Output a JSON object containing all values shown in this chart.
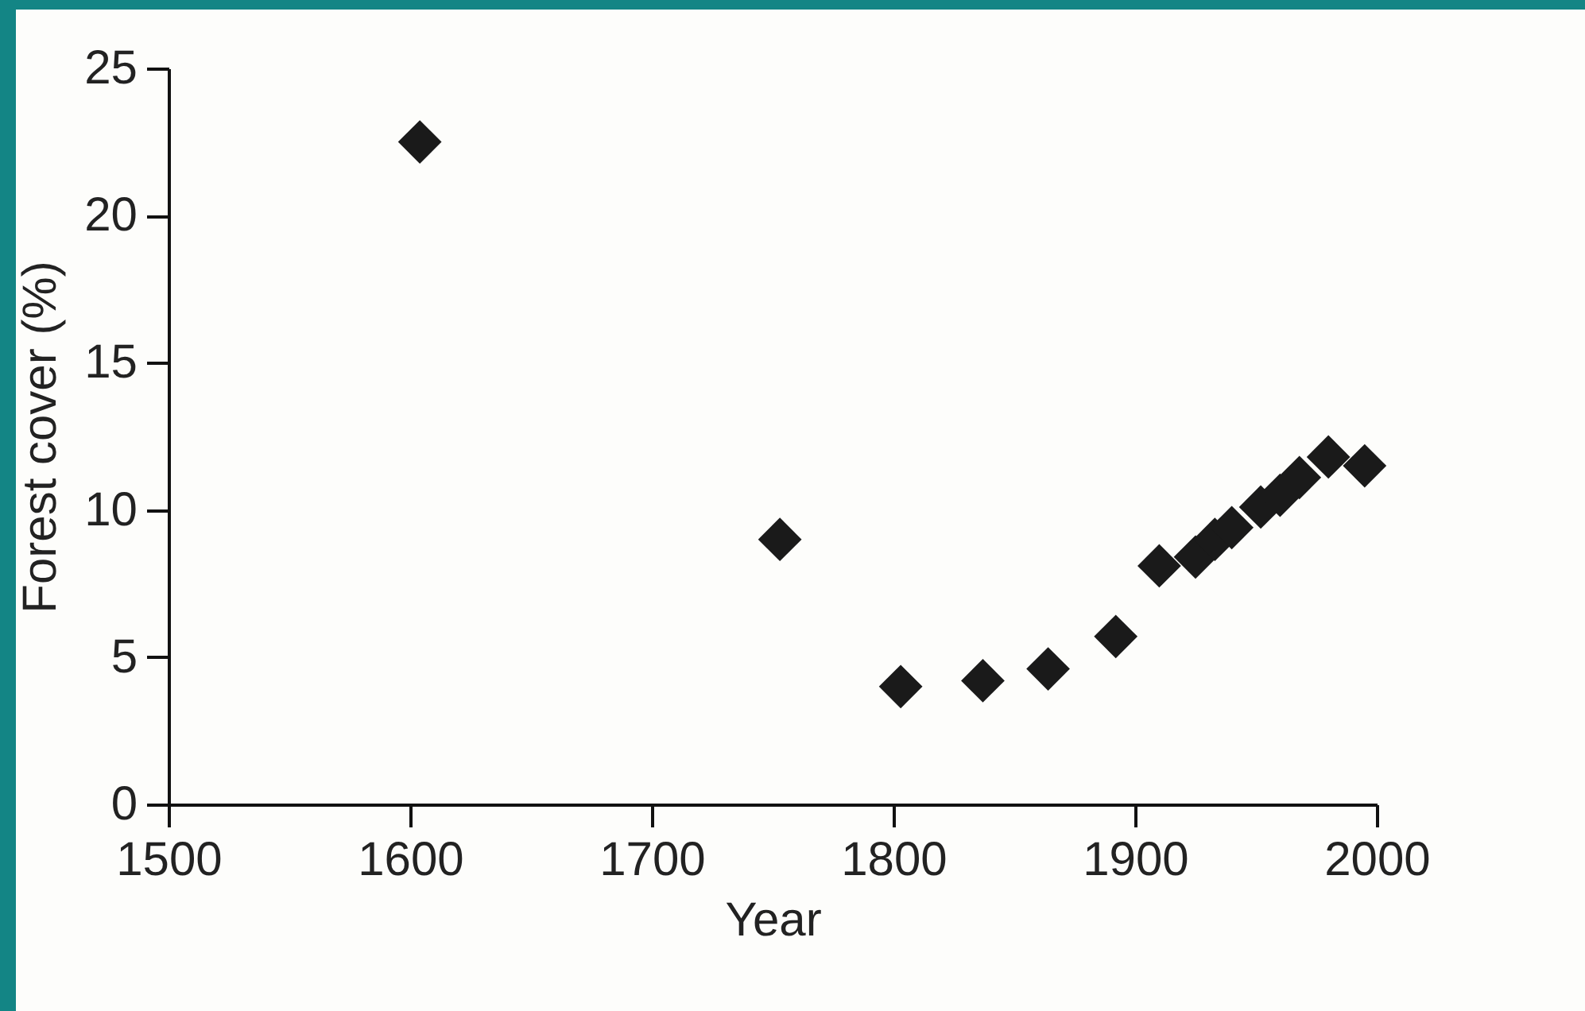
{
  "chart_data": {
    "type": "scatter",
    "xlabel": "Year",
    "ylabel": "Forest cover (%)",
    "x": [
      1604,
      1753,
      1803,
      1837,
      1864,
      1892,
      1910,
      1925,
      1933,
      1940,
      1952,
      1960,
      1968,
      1980,
      1995
    ],
    "series": [
      {
        "color": "#1a1a1a",
        "values": [
          22.5,
          9.0,
          4.0,
          4.2,
          4.6,
          5.7,
          8.1,
          8.4,
          9.0,
          9.4,
          10.1,
          10.5,
          11.1,
          11.8,
          11.5
        ]
      }
    ],
    "xlim": [
      1500,
      2000
    ],
    "xticks": [
      1500,
      1600,
      1700,
      1800,
      1900,
      2000
    ],
    "ylim": [
      0,
      25
    ],
    "yticks": [
      0,
      5,
      10,
      15,
      20,
      25
    ],
    "marker": "diamond",
    "grid": false
  }
}
